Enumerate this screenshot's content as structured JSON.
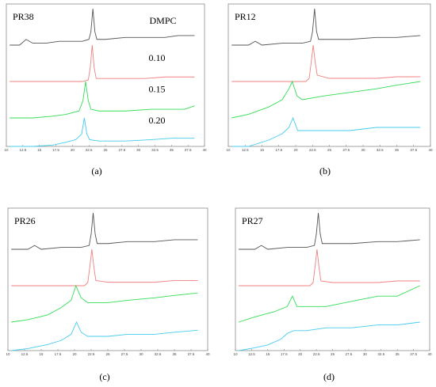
{
  "chart_data": [
    {
      "type": "line",
      "panel": "(a)",
      "title": "PR38",
      "xlim": [
        10,
        40
      ],
      "x_ticks": [
        "10",
        "12.5",
        "15",
        "17.5",
        "20",
        "22.5",
        "25",
        "27.5",
        "30",
        "32.5",
        "35",
        "37.5",
        "40"
      ],
      "series": [
        {
          "name": "DMPC",
          "color": "#555555",
          "points": [
            [
              10.5,
              0.8
            ],
            [
              12,
              0.8
            ],
            [
              13,
              0.83
            ],
            [
              14,
              0.81
            ],
            [
              16,
              0.81
            ],
            [
              18,
              0.82
            ],
            [
              20,
              0.82
            ],
            [
              21.5,
              0.82
            ],
            [
              22.5,
              0.83
            ],
            [
              22.8,
              0.87
            ],
            [
              23.1,
              0.99
            ],
            [
              23.4,
              0.87
            ],
            [
              23.7,
              0.83
            ],
            [
              25,
              0.83
            ],
            [
              28,
              0.84
            ],
            [
              31,
              0.84
            ],
            [
              34,
              0.84
            ],
            [
              36,
              0.85
            ],
            [
              38.5,
              0.85
            ]
          ]
        },
        {
          "name": "0.10",
          "color": "#f08080",
          "points": [
            [
              10.5,
              0.56
            ],
            [
              14,
              0.56
            ],
            [
              18,
              0.56
            ],
            [
              21.5,
              0.56
            ],
            [
              22.4,
              0.57
            ],
            [
              22.7,
              0.65
            ],
            [
              23.0,
              0.8
            ],
            [
              23.3,
              0.65
            ],
            [
              23.6,
              0.58
            ],
            [
              25,
              0.58
            ],
            [
              28,
              0.58
            ],
            [
              31,
              0.58
            ],
            [
              34,
              0.59
            ],
            [
              38.5,
              0.59
            ]
          ]
        },
        {
          "name": "0.15",
          "color": "#33dd55",
          "points": [
            [
              10.5,
              0.28
            ],
            [
              14,
              0.28
            ],
            [
              17,
              0.29
            ],
            [
              19,
              0.3
            ],
            [
              21,
              0.32
            ],
            [
              21.6,
              0.38
            ],
            [
              22.0,
              0.49
            ],
            [
              22.4,
              0.38
            ],
            [
              22.8,
              0.33
            ],
            [
              24,
              0.32
            ],
            [
              28,
              0.32
            ],
            [
              32,
              0.33
            ],
            [
              35,
              0.33
            ],
            [
              37,
              0.33
            ],
            [
              38.5,
              0.35
            ]
          ]
        },
        {
          "name": "0.20",
          "color": "#44ccee",
          "points": [
            [
              10.5,
              0.0
            ],
            [
              14,
              0.0
            ],
            [
              17,
              0.01
            ],
            [
              19,
              0.03
            ],
            [
              20.5,
              0.05
            ],
            [
              21.4,
              0.09
            ],
            [
              21.8,
              0.21
            ],
            [
              22.2,
              0.09
            ],
            [
              22.6,
              0.05
            ],
            [
              24,
              0.04
            ],
            [
              28,
              0.04
            ],
            [
              32,
              0.05
            ],
            [
              35,
              0.06
            ],
            [
              38.5,
              0.06
            ]
          ]
        }
      ]
    },
    {
      "type": "line",
      "panel": "(b)",
      "title": "PR12",
      "xlim": [
        10,
        40
      ],
      "x_ticks": [
        "10",
        "12.5",
        "15",
        "17.5",
        "20",
        "22.5",
        "25",
        "27.5",
        "30",
        "32.5",
        "35",
        "37.5",
        "40"
      ],
      "series": [
        {
          "name": "",
          "color": "#555555",
          "points": [
            [
              10.5,
              0.8
            ],
            [
              13,
              0.8
            ],
            [
              14,
              0.82
            ],
            [
              15,
              0.8
            ],
            [
              18,
              0.81
            ],
            [
              21,
              0.81
            ],
            [
              22.2,
              0.82
            ],
            [
              22.5,
              0.87
            ],
            [
              22.8,
              0.99
            ],
            [
              23.1,
              0.87
            ],
            [
              23.4,
              0.83
            ],
            [
              25,
              0.83
            ],
            [
              28,
              0.83
            ],
            [
              32,
              0.84
            ],
            [
              35,
              0.84
            ],
            [
              38.5,
              0.85
            ]
          ]
        },
        {
          "name": "",
          "color": "#f08080",
          "points": [
            [
              10.5,
              0.53
            ],
            [
              14,
              0.53
            ],
            [
              18,
              0.53
            ],
            [
              21.5,
              0.53
            ],
            [
              22.0,
              0.55
            ],
            [
              22.3,
              0.65
            ],
            [
              22.6,
              0.76
            ],
            [
              22.9,
              0.65
            ],
            [
              23.2,
              0.57
            ],
            [
              25,
              0.55
            ],
            [
              28,
              0.55
            ],
            [
              32,
              0.55
            ],
            [
              35,
              0.56
            ],
            [
              38.5,
              0.56
            ]
          ]
        },
        {
          "name": "",
          "color": "#33dd55",
          "points": [
            [
              10.5,
              0.22
            ],
            [
              13,
              0.23
            ],
            [
              16,
              0.25
            ],
            [
              18,
              0.27
            ],
            [
              19,
              0.3
            ],
            [
              19.5,
              0.32
            ],
            [
              20.2,
              0.28
            ],
            [
              21,
              0.27
            ],
            [
              24,
              0.28
            ],
            [
              28,
              0.29
            ],
            [
              32,
              0.3
            ],
            [
              35,
              0.31
            ],
            [
              38.5,
              0.32
            ]
          ]
        },
        {
          "name": "",
          "color": "#44ccee",
          "points": [
            [
              10.5,
              0.01
            ],
            [
              13,
              0.01
            ],
            [
              16,
              0.03
            ],
            [
              18,
              0.05
            ],
            [
              19,
              0.07
            ],
            [
              19.6,
              0.1
            ],
            [
              20.3,
              0.06
            ],
            [
              21,
              0.06
            ],
            [
              24,
              0.06
            ],
            [
              28,
              0.06
            ],
            [
              32,
              0.07
            ],
            [
              35,
              0.07
            ],
            [
              38.5,
              0.07
            ]
          ]
        }
      ]
    },
    {
      "type": "line",
      "panel": "(c)",
      "title": "PR26",
      "xlim": [
        10,
        40
      ],
      "x_ticks": [
        "10",
        "12.5",
        "15",
        "17.5",
        "20",
        "22.5",
        "25",
        "27.5",
        "30",
        "32.5",
        "35",
        "37.5",
        "40"
      ],
      "series": [
        {
          "name": "",
          "color": "#555555",
          "points": [
            [
              10.5,
              0.8
            ],
            [
              13,
              0.8
            ],
            [
              14,
              0.82
            ],
            [
              15,
              0.8
            ],
            [
              18,
              0.81
            ],
            [
              21,
              0.81
            ],
            [
              22.2,
              0.82
            ],
            [
              22.5,
              0.88
            ],
            [
              22.8,
              0.99
            ],
            [
              23.1,
              0.88
            ],
            [
              23.4,
              0.83
            ],
            [
              25,
              0.83
            ],
            [
              28,
              0.84
            ],
            [
              32,
              0.84
            ],
            [
              35,
              0.85
            ],
            [
              38.5,
              0.85
            ]
          ]
        },
        {
          "name": "",
          "color": "#f08080",
          "points": [
            [
              10.5,
              0.55
            ],
            [
              14,
              0.55
            ],
            [
              18,
              0.55
            ],
            [
              21.5,
              0.55
            ],
            [
              22.0,
              0.57
            ],
            [
              22.3,
              0.66
            ],
            [
              22.6,
              0.76
            ],
            [
              22.9,
              0.66
            ],
            [
              23.2,
              0.58
            ],
            [
              25,
              0.57
            ],
            [
              28,
              0.57
            ],
            [
              32,
              0.57
            ],
            [
              35,
              0.58
            ],
            [
              38.5,
              0.58
            ]
          ]
        },
        {
          "name": "",
          "color": "#33dd55",
          "points": [
            [
              10.5,
              0.21
            ],
            [
              13,
              0.22
            ],
            [
              16,
              0.24
            ],
            [
              18,
              0.27
            ],
            [
              19.5,
              0.3
            ],
            [
              20.2,
              0.36
            ],
            [
              21,
              0.31
            ],
            [
              22,
              0.29
            ],
            [
              25,
              0.29
            ],
            [
              28,
              0.3
            ],
            [
              32,
              0.31
            ],
            [
              35,
              0.32
            ],
            [
              38.5,
              0.33
            ]
          ]
        },
        {
          "name": "",
          "color": "#44ccee",
          "points": [
            [
              10.5,
              0.0
            ],
            [
              13,
              0.01
            ],
            [
              16,
              0.03
            ],
            [
              18,
              0.05
            ],
            [
              19.5,
              0.08
            ],
            [
              20.3,
              0.14
            ],
            [
              21,
              0.09
            ],
            [
              22,
              0.07
            ],
            [
              25,
              0.07
            ],
            [
              28,
              0.08
            ],
            [
              32,
              0.08
            ],
            [
              35,
              0.09
            ],
            [
              38.5,
              0.1
            ]
          ]
        }
      ]
    },
    {
      "type": "line",
      "panel": "(d)",
      "title": "PR27",
      "xlim": [
        10,
        40
      ],
      "x_ticks": [
        "10",
        "12.5",
        "15",
        "17.5",
        "20",
        "22.5",
        "25",
        "27.5",
        "30",
        "32.5",
        "35",
        "37.5",
        "40"
      ],
      "series": [
        {
          "name": "",
          "color": "#555555",
          "points": [
            [
              10.5,
              0.79
            ],
            [
              13,
              0.79
            ],
            [
              14,
              0.81
            ],
            [
              15,
              0.79
            ],
            [
              18,
              0.8
            ],
            [
              21,
              0.8
            ],
            [
              22.2,
              0.81
            ],
            [
              22.5,
              0.87
            ],
            [
              22.8,
              0.98
            ],
            [
              23.1,
              0.87
            ],
            [
              23.4,
              0.82
            ],
            [
              25,
              0.82
            ],
            [
              28,
              0.82
            ],
            [
              32,
              0.83
            ],
            [
              35,
              0.83
            ],
            [
              38.5,
              0.84
            ]
          ]
        },
        {
          "name": "",
          "color": "#f08080",
          "points": [
            [
              10.5,
              0.53
            ],
            [
              14,
              0.53
            ],
            [
              18,
              0.53
            ],
            [
              21.5,
              0.53
            ],
            [
              22.0,
              0.55
            ],
            [
              22.3,
              0.65
            ],
            [
              22.6,
              0.76
            ],
            [
              22.9,
              0.65
            ],
            [
              23.2,
              0.56
            ],
            [
              25,
              0.55
            ],
            [
              28,
              0.55
            ],
            [
              32,
              0.55
            ],
            [
              35,
              0.56
            ],
            [
              38.5,
              0.56
            ]
          ]
        },
        {
          "name": "",
          "color": "#33dd55",
          "points": [
            [
              10.5,
              0.24
            ],
            [
              13,
              0.25
            ],
            [
              16,
              0.26
            ],
            [
              18,
              0.27
            ],
            [
              18.8,
              0.29
            ],
            [
              19.5,
              0.27
            ],
            [
              21,
              0.27
            ],
            [
              24,
              0.27
            ],
            [
              28,
              0.28
            ],
            [
              32,
              0.29
            ],
            [
              35,
              0.29
            ],
            [
              38.5,
              0.31
            ]
          ]
        },
        {
          "name": "",
          "color": "#44ccee",
          "points": [
            [
              10.5,
              0.03
            ],
            [
              13,
              0.04
            ],
            [
              15,
              0.05
            ],
            [
              17,
              0.07
            ],
            [
              18,
              0.09
            ],
            [
              19,
              0.1
            ],
            [
              21,
              0.1
            ],
            [
              24,
              0.11
            ],
            [
              28,
              0.11
            ],
            [
              32,
              0.12
            ],
            [
              35,
              0.12
            ],
            [
              38.5,
              0.13
            ]
          ]
        }
      ]
    }
  ]
}
